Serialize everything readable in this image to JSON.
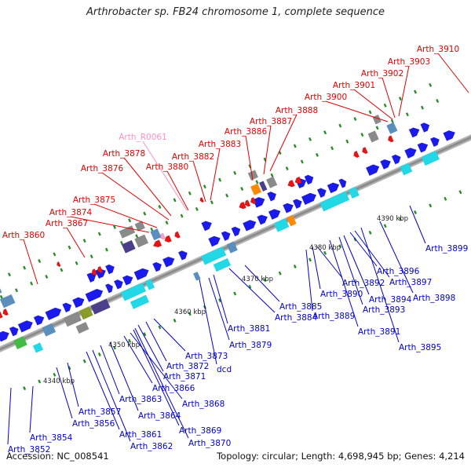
{
  "title": "Arthrobacter sp. FB24 chromosome 1, complete sequence",
  "footer": {
    "accession": "Accession: NC_008541",
    "summary": "Topology: circular; Length: 4,698,945 bp; Genes: 4,214"
  },
  "colors": {
    "backbone": "#8c8c8c",
    "forward_gene": "#1a1aee",
    "reverse_gene": "#ee1111",
    "rna_gene": "#ff9ecf",
    "label_reverse": "#e00000",
    "label_forward": "#0000cc",
    "label_rna": "#ff8fc4",
    "tick_dot": "#2a8c2a",
    "cog_cyan": "#22d8e6",
    "cog_purple": "#4b3f8c",
    "cog_gray": "#8a8a8a",
    "cog_orange": "#ff8800",
    "cog_green": "#44bb44",
    "cog_olive": "#8c9a2a",
    "cog_steel": "#5a8fbd"
  },
  "scale_labels": [
    "4340 kbp",
    "4350 kbp",
    "4360 kbp",
    "4370 kbp",
    "4380 kbp",
    "4390 kbp"
  ],
  "reverse_labels": [
    "Arth_3860",
    "Arth_3867",
    "Arth_3874",
    "Arth_3875",
    "Arth_3876",
    "Arth_3878",
    "Arth_3880",
    "Arth_3882",
    "Arth_3883",
    "Arth_3886",
    "Arth_3887",
    "Arth_3888",
    "Arth_3900",
    "Arth_3901",
    "Arth_3902",
    "Arth_3903",
    "Arth_3910"
  ],
  "rna_labels": [
    "Arth_R0061"
  ],
  "forward_labels": [
    "Arth_3852",
    "Arth_3854",
    "Arth_3856",
    "Arth_3857",
    "Arth_3861",
    "Arth_3862",
    "Arth_3863",
    "Arth_3864",
    "Arth_3866",
    "Arth_3868",
    "Arth_3869",
    "Arth_3870",
    "Arth_3871",
    "Arth_3872",
    "Arth_3873",
    "dcd",
    "Arth_3879",
    "Arth_3881",
    "Arth_3884",
    "Arth_3885",
    "Arth_3889",
    "Arth_3890",
    "Arth_3891",
    "Arth_3892",
    "Arth_3893",
    "Arth_3894",
    "Arth_3895",
    "Arth_3896",
    "Arth_3897",
    "Arth_3898",
    "Arth_3899"
  ]
}
